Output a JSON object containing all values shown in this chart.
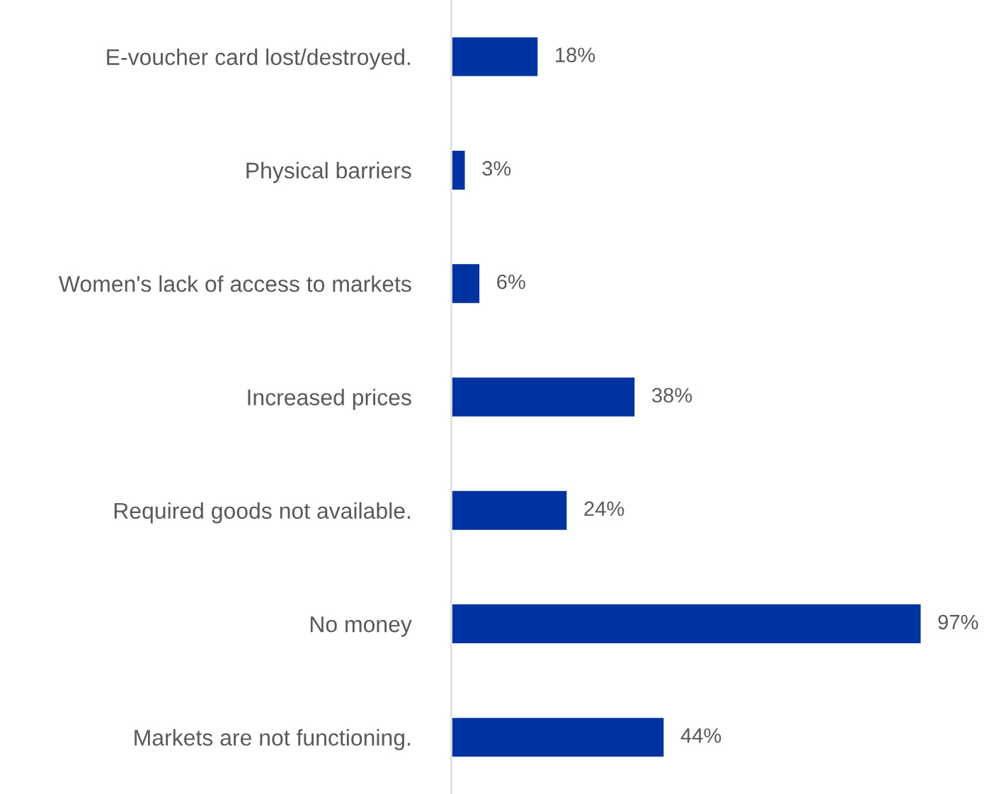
{
  "chart_data": {
    "type": "bar",
    "orientation": "horizontal",
    "categories": [
      "E-voucher card lost/destroyed.",
      "Physical barriers",
      "Women's lack of access to markets",
      "Increased prices",
      "Required goods not available.",
      "No money",
      "Markets are not functioning."
    ],
    "values": [
      18,
      3,
      6,
      38,
      24,
      97,
      44
    ],
    "value_labels": [
      "18%",
      "3%",
      "6%",
      "38%",
      "24%",
      "97%",
      "44%"
    ],
    "color": "#0033a0",
    "grid": false,
    "legend": false
  }
}
